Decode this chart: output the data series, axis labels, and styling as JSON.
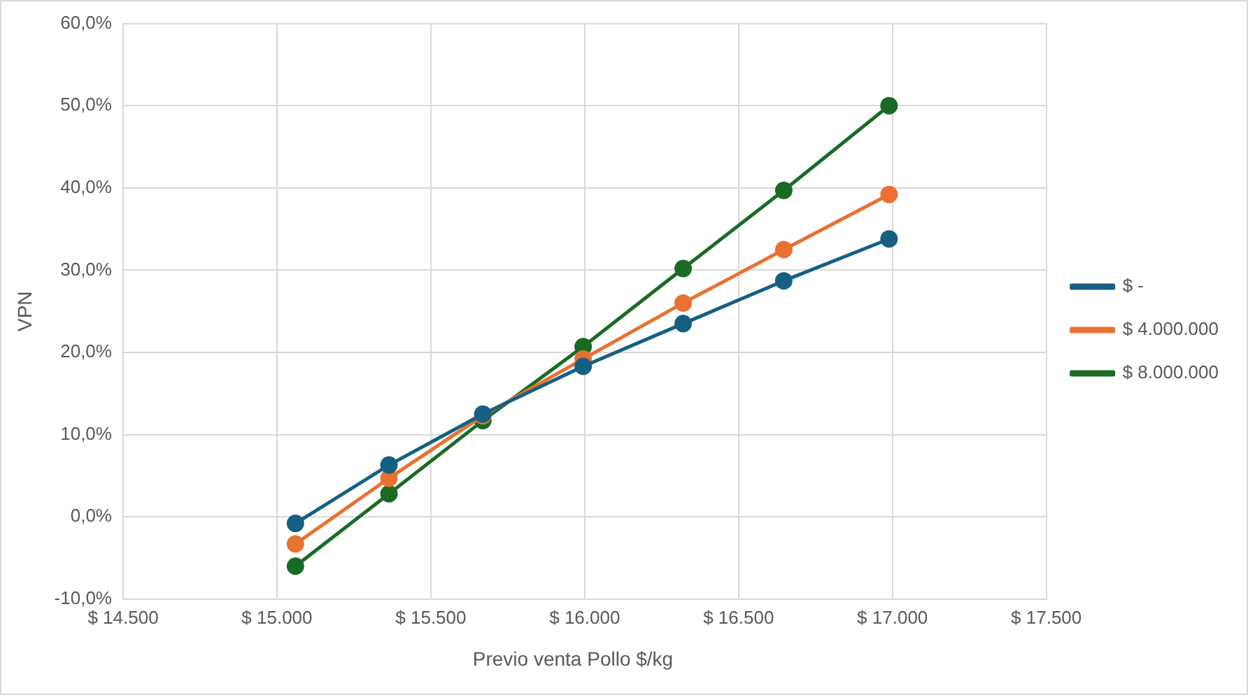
{
  "chart_data": {
    "type": "line",
    "xlabel": "Previo venta Pollo $/kg",
    "ylabel": "VPN",
    "x": [
      15060,
      15364,
      15669,
      15995,
      16320,
      16647,
      16989
    ],
    "series": [
      {
        "name": "$ -",
        "color": "#156082",
        "values": [
          -0.8,
          6.3,
          12.5,
          18.3,
          23.5,
          28.7,
          33.8
        ]
      },
      {
        "name": "$ 4.000.000",
        "color": "#e97132",
        "values": [
          -3.3,
          4.7,
          12.3,
          19.2,
          26.0,
          32.5,
          39.2
        ]
      },
      {
        "name": "$ 8.000.000",
        "color": "#196b24",
        "values": [
          -6.0,
          2.8,
          11.7,
          20.7,
          30.2,
          39.7,
          50.0
        ]
      }
    ],
    "xlim": [
      14500,
      17500
    ],
    "xticks": [
      {
        "value": 14500,
        "label": "$ 14.500"
      },
      {
        "value": 15000,
        "label": "$ 15.000"
      },
      {
        "value": 15500,
        "label": "$ 15.500"
      },
      {
        "value": 16000,
        "label": "$ 16.000"
      },
      {
        "value": 16500,
        "label": "$ 16.500"
      },
      {
        "value": 17000,
        "label": "$ 17.000"
      },
      {
        "value": 17500,
        "label": "$ 17.500"
      }
    ],
    "ylim": [
      -10,
      60
    ],
    "yticks": [
      {
        "value": -10,
        "label": "-10,0%"
      },
      {
        "value": 0,
        "label": "0,0%"
      },
      {
        "value": 10,
        "label": "10,0%"
      },
      {
        "value": 20,
        "label": "20,0%"
      },
      {
        "value": 30,
        "label": "30,0%"
      },
      {
        "value": 40,
        "label": "40,0%"
      },
      {
        "value": 50,
        "label": "50,0%"
      },
      {
        "value": 60,
        "label": "60,0%"
      }
    ],
    "grid": true,
    "legend": "right",
    "marker": "circle",
    "line_style": "solid"
  }
}
